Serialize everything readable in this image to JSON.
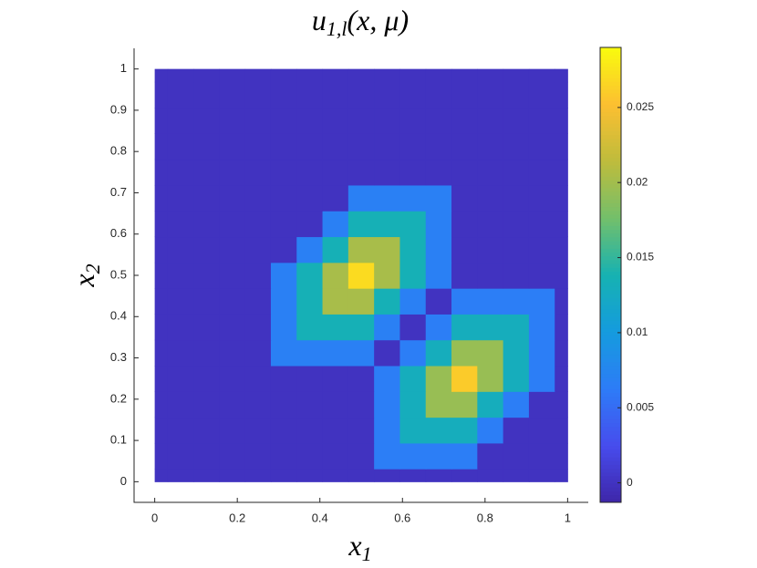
{
  "chart_data": {
    "type": "heatmap",
    "title": {
      "base": "u",
      "sub": "1,l",
      "rest": "(x, μ)"
    },
    "xlabel": {
      "base": "x",
      "sub": "1"
    },
    "ylabel": {
      "base": "x",
      "sub": "2"
    },
    "colormap": "parula",
    "x": [
      0,
      0.0625,
      0.125,
      0.1875,
      0.25,
      0.3125,
      0.375,
      0.4375,
      0.5,
      0.5625,
      0.625,
      0.6875,
      0.75,
      0.8125,
      0.875,
      0.9375,
      1
    ],
    "y": [
      0,
      0.0625,
      0.125,
      0.1875,
      0.25,
      0.3125,
      0.375,
      0.4375,
      0.5,
      0.5625,
      0.625,
      0.6875,
      0.75,
      0.8125,
      0.875,
      0.9375,
      1
    ],
    "z": [
      [
        0,
        0,
        0,
        0,
        0,
        0,
        0,
        0,
        0,
        0,
        0,
        0,
        0,
        0,
        0,
        0,
        0
      ],
      [
        0,
        0,
        0,
        0,
        0,
        0,
        0,
        0,
        0,
        0.0065,
        0.0065,
        0.0065,
        0.0065,
        0,
        0,
        0,
        0
      ],
      [
        0,
        0,
        0,
        0,
        0,
        0,
        0,
        0,
        0,
        0.0065,
        0.013,
        0.013,
        0.013,
        0.0065,
        0,
        0,
        0
      ],
      [
        0,
        0,
        0,
        0,
        0,
        0,
        0,
        0,
        0,
        0.0065,
        0.013,
        0.0195,
        0.0195,
        0.013,
        0.0065,
        0,
        0
      ],
      [
        0,
        0,
        0,
        0,
        0,
        0,
        0,
        0,
        0,
        0.0065,
        0.013,
        0.0195,
        0.026,
        0.0195,
        0.013,
        0.0065,
        0
      ],
      [
        0,
        0,
        0,
        0,
        0,
        0.0068,
        0.0068,
        0.0068,
        0.0068,
        0,
        0.0065,
        0.013,
        0.0195,
        0.0195,
        0.013,
        0.0065,
        0
      ],
      [
        0,
        0,
        0,
        0,
        0,
        0.0068,
        0.0135,
        0.0135,
        0.0135,
        0.0068,
        0,
        0.0065,
        0.013,
        0.013,
        0.013,
        0.0065,
        0
      ],
      [
        0,
        0,
        0,
        0,
        0,
        0.0068,
        0.0135,
        0.0203,
        0.0203,
        0.0135,
        0.0068,
        0,
        0.0065,
        0.0065,
        0.0065,
        0.0065,
        0
      ],
      [
        0,
        0,
        0,
        0,
        0,
        0.0068,
        0.0135,
        0.0203,
        0.027,
        0.0203,
        0.0135,
        0.0068,
        0,
        0,
        0,
        0,
        0
      ],
      [
        0,
        0,
        0,
        0,
        0,
        0,
        0.0068,
        0.0135,
        0.0203,
        0.0203,
        0.0135,
        0.0068,
        0,
        0,
        0,
        0,
        0
      ],
      [
        0,
        0,
        0,
        0,
        0,
        0,
        0,
        0.0068,
        0.0135,
        0.0135,
        0.0135,
        0.0068,
        0,
        0,
        0,
        0,
        0
      ],
      [
        0,
        0,
        0,
        0,
        0,
        0,
        0,
        0,
        0.0068,
        0.0068,
        0.0068,
        0.0068,
        0,
        0,
        0,
        0,
        0
      ],
      [
        0,
        0,
        0,
        0,
        0,
        0,
        0,
        0,
        0,
        0,
        0,
        0,
        0,
        0,
        0,
        0,
        0
      ],
      [
        0,
        0,
        0,
        0,
        0,
        0,
        0,
        0,
        0,
        0,
        0,
        0,
        0,
        0,
        0,
        0,
        0
      ],
      [
        0,
        0,
        0,
        0,
        0,
        0,
        0,
        0,
        0,
        0,
        0,
        0,
        0,
        0,
        0,
        0,
        0
      ],
      [
        0,
        0,
        0,
        0,
        0,
        0,
        0,
        0,
        0,
        0,
        0,
        0,
        0,
        0,
        0,
        0,
        0
      ],
      [
        0,
        0,
        0,
        0,
        0,
        0,
        0,
        0,
        0,
        0,
        0,
        0,
        0,
        0,
        0,
        0,
        0
      ]
    ],
    "xlim": [
      -0.05,
      1.05
    ],
    "ylim": [
      -0.05,
      1.05
    ],
    "xticks": [
      0,
      0.2,
      0.4,
      0.6,
      0.8,
      1
    ],
    "yticks": [
      0,
      0.1,
      0.2,
      0.3,
      0.4,
      0.5,
      0.6,
      0.7,
      0.8,
      0.9,
      1
    ],
    "clim": [
      -0.0013,
      0.029
    ],
    "cticks": [
      0,
      0.005,
      0.01,
      0.015,
      0.02,
      0.025
    ]
  }
}
